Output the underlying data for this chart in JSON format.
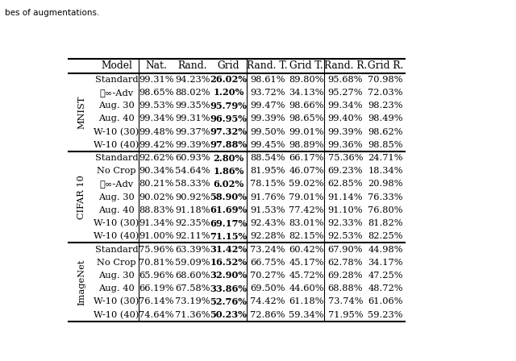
{
  "title_text": "bes of augmentations.",
  "headers": [
    "Model",
    "Nat.",
    "Rand.",
    "Grid",
    "Rand. T.",
    "Grid T.",
    "Rand. R.",
    "Grid R."
  ],
  "sections": [
    {
      "label": "MNIST",
      "rows": [
        [
          "Standard",
          "99.31%",
          "94.23%",
          "26.02%",
          "98.61%",
          "89.80%",
          "95.68%",
          "70.98%"
        ],
        [
          "ℓ∞-Adv",
          "98.65%",
          "88.02%",
          "1.20%",
          "93.72%",
          "34.13%",
          "95.27%",
          "72.03%"
        ],
        [
          "Aug. 30",
          "99.53%",
          "99.35%",
          "95.79%",
          "99.47%",
          "98.66%",
          "99.34%",
          "98.23%"
        ],
        [
          "Aug. 40",
          "99.34%",
          "99.31%",
          "96.95%",
          "99.39%",
          "98.65%",
          "99.40%",
          "98.49%"
        ],
        [
          "W-10 (30)",
          "99.48%",
          "99.37%",
          "97.32%",
          "99.50%",
          "99.01%",
          "99.39%",
          "98.62%"
        ],
        [
          "W-10 (40)",
          "99.42%",
          "99.39%",
          "97.88%",
          "99.45%",
          "98.89%",
          "99.36%",
          "98.85%"
        ]
      ]
    },
    {
      "label": "CIFAR 10",
      "rows": [
        [
          "Standard",
          "92.62%",
          "60.93%",
          "2.80%",
          "88.54%",
          "66.17%",
          "75.36%",
          "24.71%"
        ],
        [
          "No Crop",
          "90.34%",
          "54.64%",
          "1.86%",
          "81.95%",
          "46.07%",
          "69.23%",
          "18.34%"
        ],
        [
          "ℓ∞-Adv",
          "80.21%",
          "58.33%",
          "6.02%",
          "78.15%",
          "59.02%",
          "62.85%",
          "20.98%"
        ],
        [
          "Aug. 30",
          "90.02%",
          "90.92%",
          "58.90%",
          "91.76%",
          "79.01%",
          "91.14%",
          "76.33%"
        ],
        [
          "Aug. 40",
          "88.83%",
          "91.18%",
          "61.69%",
          "91.53%",
          "77.42%",
          "91.10%",
          "76.80%"
        ],
        [
          "W-10 (30)",
          "91.34%",
          "92.35%",
          "69.17%",
          "92.43%",
          "83.01%",
          "92.33%",
          "81.82%"
        ],
        [
          "W-10 (40)",
          "91.00%",
          "92.11%",
          "71.15%",
          "92.28%",
          "82.15%",
          "92.53%",
          "82.25%"
        ]
      ]
    },
    {
      "label": "ImageNet",
      "rows": [
        [
          "Standard",
          "75.96%",
          "63.39%",
          "31.42%",
          "73.24%",
          "60.42%",
          "67.90%",
          "44.98%"
        ],
        [
          "No Crop",
          "70.81%",
          "59.09%",
          "16.52%",
          "66.75%",
          "45.17%",
          "62.78%",
          "34.17%"
        ],
        [
          "Aug. 30",
          "65.96%",
          "68.60%",
          "32.90%",
          "70.27%",
          "45.72%",
          "69.28%",
          "47.25%"
        ],
        [
          "Aug. 40",
          "66.19%",
          "67.58%",
          "33.86%",
          "69.50%",
          "44.60%",
          "68.88%",
          "48.72%"
        ],
        [
          "W-10 (30)",
          "76.14%",
          "73.19%",
          "52.76%",
          "74.42%",
          "61.18%",
          "73.74%",
          "61.06%"
        ],
        [
          "W-10 (40)",
          "74.64%",
          "71.36%",
          "50.23%",
          "72.86%",
          "59.34%",
          "71.95%",
          "59.23%"
        ]
      ]
    }
  ],
  "bold_col_idx": 3,
  "bg_color": "#ffffff",
  "text_color": "#000000",
  "fontsize": 8.2,
  "header_fontsize": 8.8,
  "label_fontsize": 8.2
}
